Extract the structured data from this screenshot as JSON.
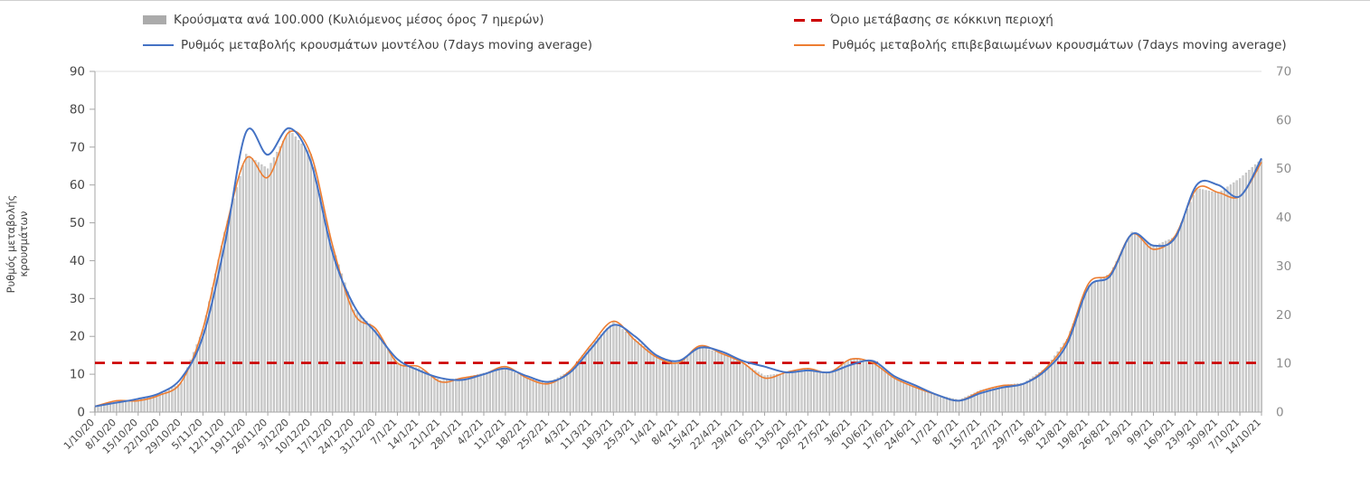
{
  "chart_data": {
    "type": "combo",
    "title": "",
    "ylabel_left": "Ρυθμός μεταβολής κρουσμάτων",
    "left_axis": {
      "min": 0,
      "max": 90,
      "ticks": [
        0,
        10,
        20,
        30,
        40,
        50,
        60,
        70,
        80,
        90
      ]
    },
    "right_axis": {
      "min": 0,
      "max": 70,
      "ticks": [
        0,
        10,
        20,
        30,
        40,
        50,
        60,
        70
      ]
    },
    "grid": "off",
    "legend_position": "top",
    "x": [
      "1/10/20",
      "8/10/20",
      "15/10/20",
      "22/10/20",
      "29/10/20",
      "5/11/20",
      "12/11/20",
      "19/11/20",
      "26/11/20",
      "3/12/20",
      "10/12/20",
      "17/12/20",
      "24/12/20",
      "31/12/20",
      "7/1/21",
      "14/1/21",
      "21/1/21",
      "28/1/21",
      "4/2/21",
      "11/2/21",
      "18/2/21",
      "25/2/21",
      "4/3/21",
      "11/3/21",
      "18/3/21",
      "25/3/21",
      "1/4/21",
      "8/4/21",
      "15/4/21",
      "22/4/21",
      "29/4/21",
      "6/5/21",
      "13/5/21",
      "20/5/21",
      "27/5/21",
      "3/6/21",
      "10/6/21",
      "17/6/21",
      "24/6/21",
      "1/7/21",
      "8/7/21",
      "15/7/21",
      "22/7/21",
      "29/7/21",
      "5/8/21",
      "12/8/21",
      "19/8/21",
      "26/8/21",
      "2/9/21",
      "9/9/21",
      "16/9/21",
      "23/9/21",
      "30/9/21",
      "7/10/21",
      "14/10/21"
    ],
    "series": [
      {
        "name": "Κρούσματα ανά 100.000 (Κυλιόμενος μέσος όρος 7 ημερών)",
        "type": "bar",
        "axis": "right",
        "color": "#cccccc",
        "values": [
          1,
          2,
          2.5,
          3.5,
          6,
          17,
          37,
          53,
          50,
          58,
          53,
          34,
          21,
          17,
          10,
          9,
          6.5,
          7,
          8,
          9,
          7,
          6,
          8.5,
          14,
          18.5,
          15,
          11.5,
          10,
          13.5,
          12,
          10,
          7.5,
          8,
          9,
          8,
          11,
          10.5,
          7,
          5,
          3.5,
          2.5,
          4.5,
          5.5,
          6,
          9,
          15,
          26,
          28.5,
          37,
          34,
          36,
          46,
          45,
          48,
          52
        ]
      },
      {
        "name": "Ρυθμός μεταβολής κρουσμάτων μοντέλου (7days moving average)",
        "type": "line",
        "axis": "left",
        "color": "#4472c4",
        "values": [
          1.5,
          2.5,
          3.5,
          5,
          9,
          20,
          44,
          74,
          68,
          75,
          66,
          42,
          28,
          21,
          14,
          11,
          9,
          8.5,
          10,
          11.5,
          9.5,
          8,
          10.5,
          17,
          23,
          20,
          15,
          13.5,
          17,
          16,
          13.5,
          12,
          10.5,
          11,
          10.5,
          12.5,
          13.5,
          9.5,
          7,
          4.5,
          3,
          5,
          6.5,
          7.5,
          11,
          18,
          33,
          36,
          47,
          44,
          46,
          60,
          60,
          57,
          67
        ]
      },
      {
        "name": "Ρυθμός μεταβολής επιβεβαιωμένων κρουσμάτων (7days moving average)",
        "type": "line",
        "axis": "left",
        "color": "#ed7d31",
        "values": [
          1.5,
          3,
          3,
          4.5,
          8,
          22,
          47,
          67,
          62,
          74,
          68,
          44,
          26,
          22,
          13,
          12,
          8,
          9,
          10,
          12,
          9,
          7.5,
          11,
          18,
          24,
          19,
          14.5,
          13,
          17.5,
          15.5,
          13,
          9,
          10.5,
          11.5,
          10.5,
          14,
          13,
          9,
          6.5,
          4.5,
          3,
          5.5,
          7,
          7.5,
          11.5,
          19,
          34,
          36.5,
          47,
          43,
          46.5,
          59,
          58,
          57,
          66
        ]
      },
      {
        "name": "Όριο μετάβασης σε κόκκινη περιοχή",
        "type": "threshold",
        "axis": "left",
        "color": "#cc0000",
        "value": 13
      }
    ]
  }
}
